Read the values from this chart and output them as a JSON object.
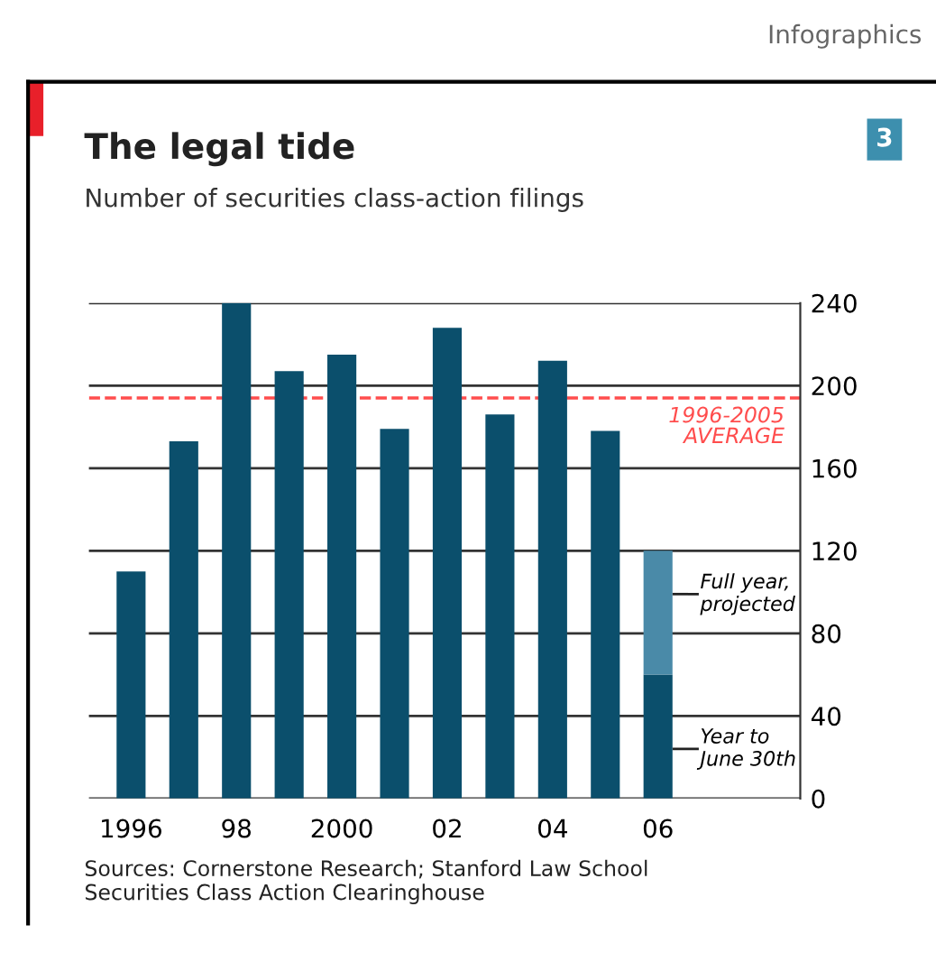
{
  "chart_data": {
    "type": "bar",
    "title": "The legal tide",
    "subtitle": "Number of securities class-action filings",
    "categories": [
      "1996",
      null,
      "98",
      null,
      "2000",
      null,
      "02",
      null,
      "04",
      null,
      "06"
    ],
    "stacked": true,
    "series": [
      {
        "name": "Year to\nJune 30th",
        "color": "#0b4f6c",
        "values": [
          110,
          173,
          240,
          207,
          215,
          179,
          228,
          186,
          212,
          178,
          60
        ]
      },
      {
        "name": "Full year,\nprojected",
        "color": "#4a8aa8",
        "values": [
          null,
          null,
          null,
          null,
          null,
          null,
          null,
          null,
          null,
          null,
          60
        ]
      }
    ],
    "ylim": [
      0,
      240
    ],
    "yticks": [
      0,
      40,
      80,
      120,
      160,
      200,
      240
    ],
    "grid": "y",
    "legend": false,
    "ref_lines": [
      {
        "axis": "y",
        "value": 194,
        "label": "1996-2005\nAVERAGE",
        "color": "#ff4d4d",
        "line_style": "dashed"
      }
    ],
    "annotations": [
      "Infographics",
      "3",
      "Sources: Cornerstone Research; Stanford Law School\nSecurities Class Action Clearinghouse"
    ]
  }
}
